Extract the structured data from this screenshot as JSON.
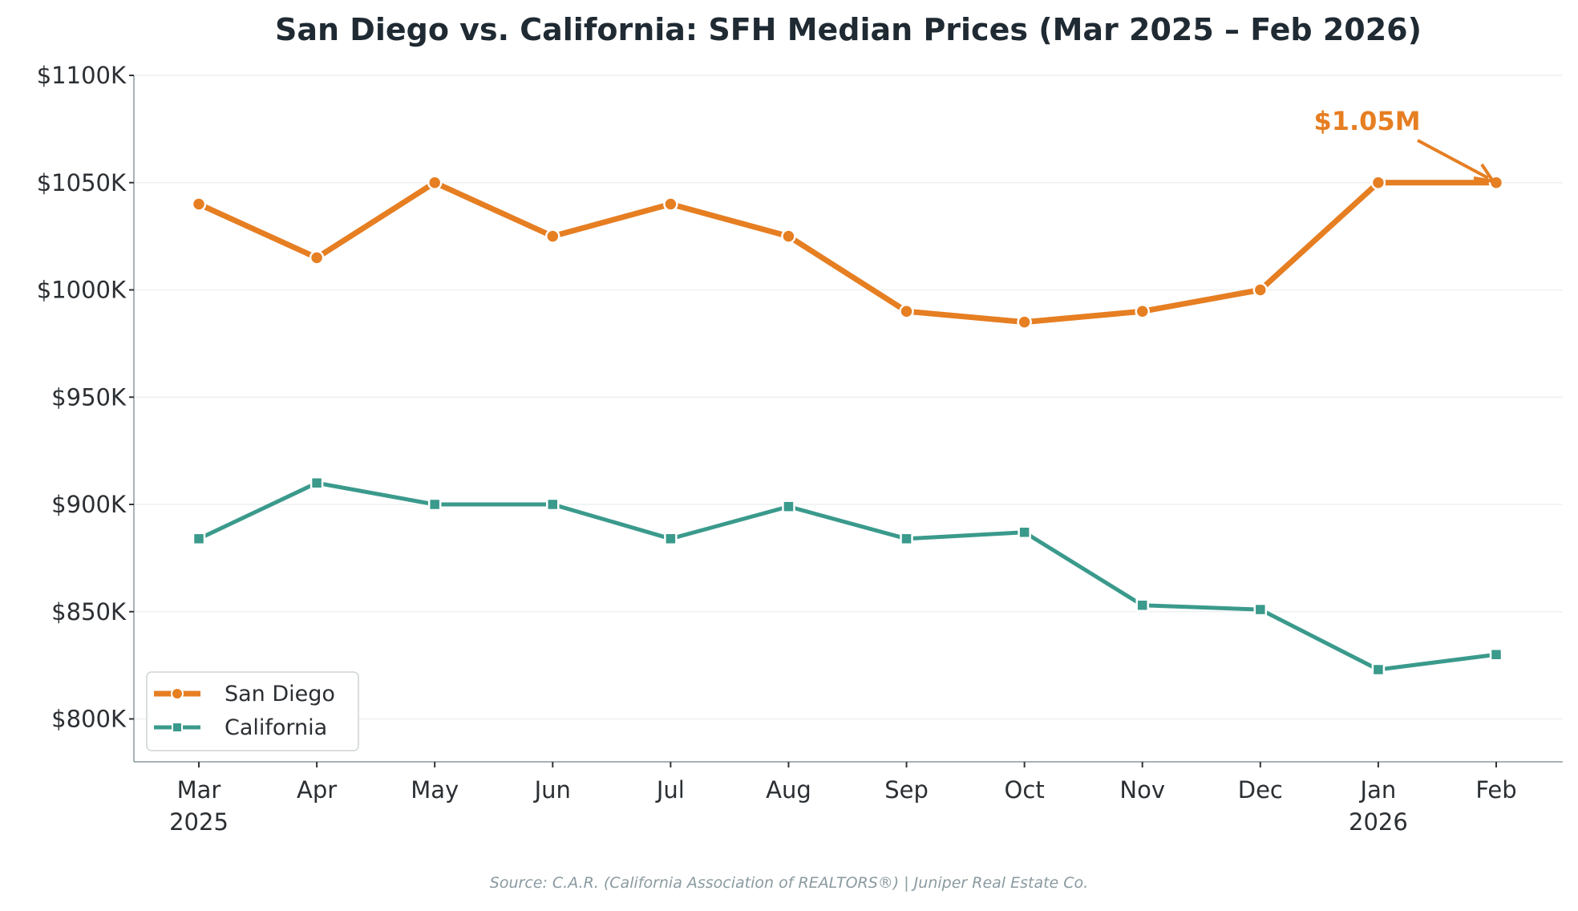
{
  "chart_data": {
    "type": "line",
    "title": "San Diego vs. California: SFH Median Prices (Mar 2025 – Feb 2026)",
    "xlabel": "",
    "ylabel": "",
    "categories": [
      "Mar",
      "Apr",
      "May",
      "Jun",
      "Jul",
      "Aug",
      "Sep",
      "Oct",
      "Nov",
      "Dec",
      "Jan",
      "Feb"
    ],
    "category_sublabels": [
      "2025",
      "",
      "",
      "",
      "",
      "",
      "",
      "",
      "",
      "",
      "2026",
      ""
    ],
    "ylim": [
      780,
      1100
    ],
    "y_unit": "$K",
    "yticks": [
      800,
      850,
      900,
      950,
      1000,
      1050,
      1100
    ],
    "ytick_labels": [
      "$800K",
      "$850K",
      "$900K",
      "$950K",
      "$1000K",
      "$1050K",
      "$1100K"
    ],
    "grid": "horizontal",
    "legend_position": "bottom-left",
    "series": [
      {
        "name": "San Diego",
        "color": "#E67E22",
        "marker": "circle",
        "values": [
          1040,
          1015,
          1050,
          1025,
          1040,
          1025,
          990,
          985,
          990,
          1000,
          1050,
          1050
        ]
      },
      {
        "name": "California",
        "color": "#3A9A8C",
        "marker": "square",
        "values": [
          884,
          910,
          900,
          900,
          884,
          899,
          884,
          887,
          853,
          851,
          823,
          830
        ]
      }
    ],
    "annotation": {
      "text": "$1.05M",
      "target_category": "Feb",
      "target_value": 1050,
      "color": "#E67E22"
    },
    "source": "Source: C.A.R. (California Association of REALTORS®) | Juniper Real Estate Co."
  }
}
